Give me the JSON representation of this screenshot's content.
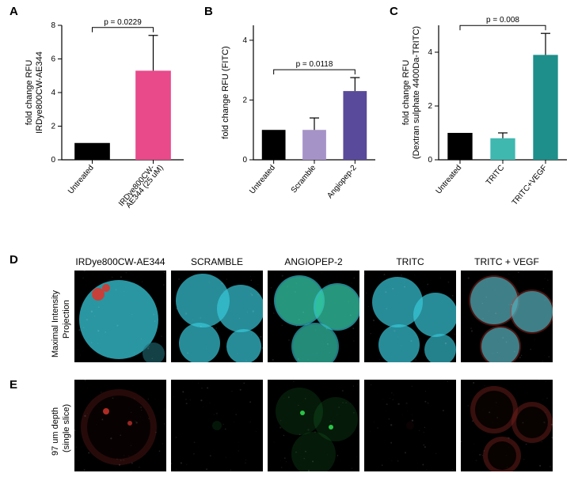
{
  "labels": {
    "A": "A",
    "B": "B",
    "C": "C",
    "D": "D",
    "E": "E"
  },
  "chartA": {
    "type": "bar",
    "ylabel_line1": "fold change RFU",
    "ylabel_line2": "IRDye800CW-AE344",
    "categories": [
      "Untreated",
      "IRDye800CW-\nAE344 (25 uM)"
    ],
    "values": [
      1.0,
      5.3
    ],
    "errors": [
      0,
      2.1
    ],
    "bar_colors": [
      "#000000",
      "#e84a8a"
    ],
    "ylim": [
      0,
      8
    ],
    "ytick_step": 2,
    "pvalue": "p = 0.0229",
    "p_between": [
      0,
      1
    ],
    "axis_fontsize": 10,
    "label_fontsize": 11,
    "bar_width": 0.58
  },
  "chartB": {
    "type": "bar",
    "ylabel_line1": "fold change RFU (FITC)",
    "ylabel_line2": "",
    "categories": [
      "Untreated",
      "Scramble",
      "Angiopep-2"
    ],
    "values": [
      1.0,
      1.0,
      2.3
    ],
    "errors": [
      0,
      0.4,
      0.45
    ],
    "bar_colors": [
      "#000000",
      "#a593c8",
      "#5a4a9b"
    ],
    "ylim": [
      0,
      4.5
    ],
    "yticks": [
      0,
      2,
      4
    ],
    "pvalue": "p = 0.0118",
    "p_between": [
      0,
      2
    ],
    "axis_fontsize": 10,
    "label_fontsize": 11,
    "bar_width": 0.58
  },
  "chartC": {
    "type": "bar",
    "ylabel_line1": "fold change RFU",
    "ylabel_line2": "(Dextran sulphate 4400Da-TRITC)",
    "categories": [
      "Untreated",
      "TRITC",
      "TRITC+VEGF"
    ],
    "values": [
      1.0,
      0.8,
      3.9
    ],
    "errors": [
      0,
      0.2,
      0.8
    ],
    "bar_colors": [
      "#000000",
      "#3fb8b0",
      "#1e8f8a"
    ],
    "ylim": [
      0,
      5
    ],
    "yticks": [
      0,
      2,
      4
    ],
    "pvalue": "p = 0.008",
    "p_between": [
      0,
      2
    ],
    "axis_fontsize": 10,
    "label_fontsize": 11,
    "bar_width": 0.58
  },
  "imageGrid": {
    "colHeaders": [
      "IRDye800CW-AE344",
      "SCRAMBLE",
      "ANGIOPEP-2",
      "TRITC",
      "TRITC + VEGF"
    ],
    "rowD_label_line1": "Maximal Intensity",
    "rowD_label_line2": "Projection",
    "rowE_label_line1": "97 um depth",
    "rowE_label_line2": "(single slice)",
    "cyan": "#37c8d8",
    "cyan_dim": "#1f6d74",
    "green": "#2bd84b",
    "red": "#d8362f",
    "red_dim": "#6e1d1a",
    "black": "#000000"
  }
}
